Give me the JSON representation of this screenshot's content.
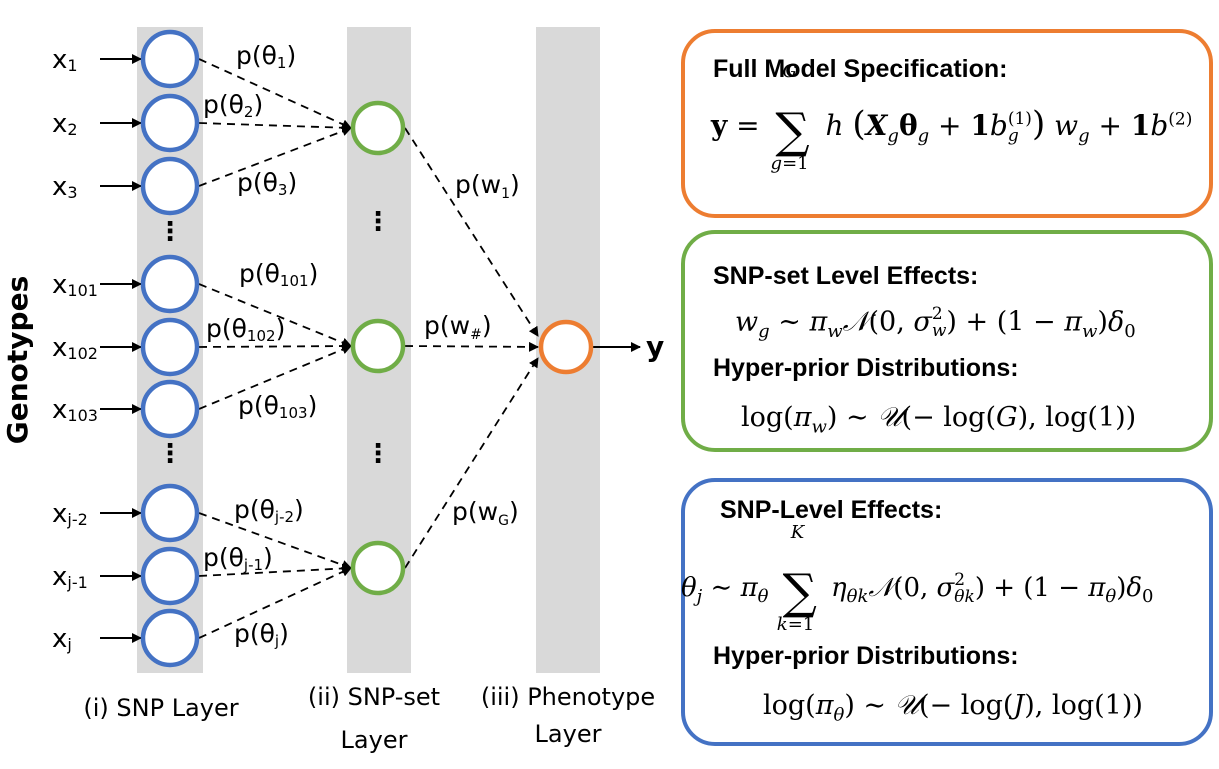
{
  "colors": {
    "snp_node": "#4472c4",
    "snpset_node": "#70ad47",
    "phenotype_node": "#ed7d31",
    "layer_band": "#d9d9d9",
    "arrow": "#000000"
  },
  "axis_label": "Genotypes",
  "layers": {
    "snp": "(i) SNP Layer",
    "snpset_line1": "(ii) SNP-set",
    "snpset_line2": "Layer",
    "phenotype_line1": "(iii) Phenotype",
    "phenotype_line2": "Layer"
  },
  "inputs": [
    {
      "base": "x",
      "sub": "1"
    },
    {
      "base": "x",
      "sub": "2"
    },
    {
      "base": "x",
      "sub": "3"
    },
    {
      "base": "x",
      "sub": "101"
    },
    {
      "base": "x",
      "sub": "102"
    },
    {
      "base": "x",
      "sub": "103"
    },
    {
      "base": "x",
      "sub": "j-2"
    },
    {
      "base": "x",
      "sub": "j-1"
    },
    {
      "base": "x",
      "sub": "j"
    }
  ],
  "edge_labels": {
    "theta": [
      {
        "base": "p(θ",
        "sub": "1",
        "end": ")"
      },
      {
        "base": "p(θ",
        "sub": "2",
        "end": ")"
      },
      {
        "base": "p(θ",
        "sub": "3",
        "end": ")"
      },
      {
        "base": "p(θ",
        "sub": "101",
        "end": ")"
      },
      {
        "base": "p(θ",
        "sub": "102",
        "end": ")"
      },
      {
        "base": "p(θ",
        "sub": "103",
        "end": ")"
      },
      {
        "base": "p(θ",
        "sub": "j-2",
        "end": ")"
      },
      {
        "base": "p(θ",
        "sub": "j-1",
        "end": ")"
      },
      {
        "base": "p(θ",
        "sub": "j",
        "end": ")"
      }
    ],
    "w": [
      {
        "base": "p(w",
        "sub": "1",
        "end": ")"
      },
      {
        "base": "p(w",
        "sub": "#",
        "end": ")"
      },
      {
        "base": "p(w",
        "sub": "G",
        "end": ")"
      }
    ]
  },
  "output_label": "y",
  "ellipsis": "⋮",
  "boxes": {
    "full_model": {
      "title": "Full Model Specification:",
      "equation": "y = Σ_{g=1}^{G} h( X_g θ_g + 1 b_g^{(1)} ) w_g + 1 b^{(2)}"
    },
    "snpset_effects": {
      "title": "SNP-set Level Effects:",
      "equation": "w_g ∼ π_w N(0, σ_w^2) + (1 − π_w) δ_0",
      "subtitle": "Hyper-prior Distributions:",
      "hyper": "log(π_w) ∼ U(− log(G), log(1))"
    },
    "snp_effects": {
      "title": "SNP-Level Effects:",
      "equation": "θ_j ∼ π_θ Σ_{k=1}^{K} η_θk N(0, σ_θk^2) + (1 − π_θ) δ_0",
      "subtitle": "Hyper-prior Distributions:",
      "hyper": "log(π_θ) ∼ U(− log(J), log(1))"
    }
  }
}
